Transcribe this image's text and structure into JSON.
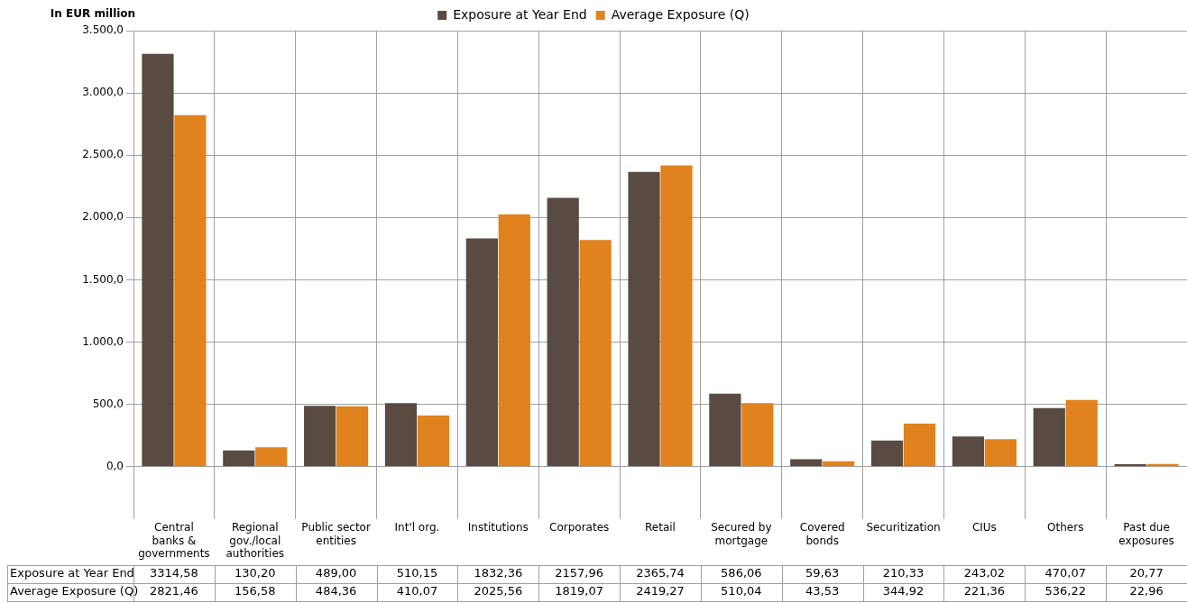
{
  "chart_data": {
    "type": "bar",
    "ylabel": "In EUR million",
    "categories": [
      "Central banks & governments",
      "Regional gov./local authorities",
      "Public sector entities",
      "Int'l org.",
      "Institutions",
      "Corporates",
      "Retail",
      "Secured by mortgage",
      "Covered bonds",
      "Securitization",
      "CIUs",
      "Others",
      "Past due exposures"
    ],
    "series": [
      {
        "name": "Exposure at Year End",
        "color": "#594a42",
        "values": [
          3314.58,
          130.2,
          489.0,
          510.15,
          1832.36,
          2157.96,
          2365.74,
          586.06,
          59.63,
          210.33,
          243.02,
          470.07,
          20.77
        ],
        "value_labels": [
          "3314,58",
          "130,20",
          "489,00",
          "510,15",
          "1832,36",
          "2157,96",
          "2365,74",
          "586,06",
          "59,63",
          "210,33",
          "243,02",
          "470,07",
          "20,77"
        ]
      },
      {
        "name": "Average Exposure (Q)",
        "color": "#e0821e",
        "values": [
          2821.46,
          156.58,
          484.36,
          410.07,
          2025.56,
          1819.07,
          2419.27,
          510.04,
          43.53,
          344.92,
          221.36,
          536.22,
          22.96
        ],
        "value_labels": [
          "2821,46",
          "156,58",
          "484,36",
          "410,07",
          "2025,56",
          "1819,07",
          "2419,27",
          "510,04",
          "43,53",
          "344,92",
          "221,36",
          "536,22",
          "22,96"
        ]
      }
    ],
    "ylim": [
      0,
      3500
    ],
    "yticks": [
      {
        "value": 0,
        "label": "0,0"
      },
      {
        "value": 500,
        "label": "500,0"
      },
      {
        "value": 1000,
        "label": "1.000,0"
      },
      {
        "value": 1500,
        "label": "1.500,0"
      },
      {
        "value": 2000,
        "label": "2.000,0"
      },
      {
        "value": 2500,
        "label": "2.500,0"
      },
      {
        "value": 3000,
        "label": "3.000,0"
      },
      {
        "value": 3500,
        "label": "3.500,0"
      }
    ],
    "grid": true,
    "legend": "top"
  }
}
